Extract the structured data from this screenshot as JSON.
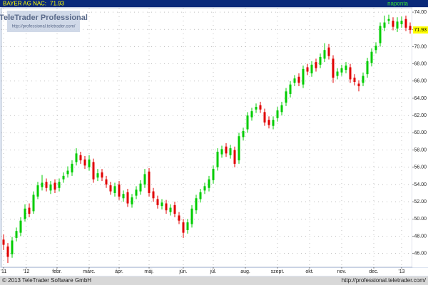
{
  "chart_data": {
    "type": "candlestick",
    "symbol": "BAYER AG  NA",
    "close_label": "C:",
    "period": "naponta",
    "logo": "TeleTrader Professional",
    "logo_url": "http://professional.teletrader.com/",
    "footer_left": "© 2013 TeleTrader Software GmbH",
    "footer_right": "http://professional.teletrader.com/",
    "up_color": "#00cc00",
    "down_color": "#e00000",
    "grid": true,
    "xlim": [
      -0.5,
      95.5
    ],
    "xticks": [
      {
        "value": 0,
        "label": "'11"
      },
      {
        "value": 5.3,
        "label": "'12"
      },
      {
        "value": 12.5,
        "label": "febr."
      },
      {
        "value": 20,
        "label": "márc."
      },
      {
        "value": 27,
        "label": "ápr."
      },
      {
        "value": 34,
        "label": "máj."
      },
      {
        "value": 42,
        "label": "jún."
      },
      {
        "value": 49,
        "label": "júl."
      },
      {
        "value": 56.5,
        "label": "aug."
      },
      {
        "value": 64,
        "label": "szept."
      },
      {
        "value": 71.5,
        "label": "okt."
      },
      {
        "value": 79,
        "label": "nov."
      },
      {
        "value": 86.5,
        "label": "dec."
      },
      {
        "value": 93,
        "label": "'13"
      }
    ],
    "ylim": [
      44.4,
      74.5
    ],
    "yticks": [
      {
        "value": 46,
        "label": "46.00"
      },
      {
        "value": 48,
        "label": "48.00"
      },
      {
        "value": 50,
        "label": "50.00"
      },
      {
        "value": 52,
        "label": "52.00"
      },
      {
        "value": 54,
        "label": "54.00"
      },
      {
        "value": 56,
        "label": "56.00"
      },
      {
        "value": 58,
        "label": "58.00"
      },
      {
        "value": 60,
        "label": "60.00"
      },
      {
        "value": 62,
        "label": "62.00"
      },
      {
        "value": 64,
        "label": "64.00"
      },
      {
        "value": 66,
        "label": "66.00"
      },
      {
        "value": 68,
        "label": "68.00"
      },
      {
        "value": 70,
        "label": "70.00"
      },
      {
        "value": 72,
        "label": "72.00"
      },
      {
        "value": 74,
        "label": "74.00"
      }
    ],
    "open": [
      47.6,
      46.8,
      45.9,
      47.8,
      48.4,
      50.0,
      51.3,
      50.9,
      52.6,
      53.7,
      54.3,
      53.3,
      54.2,
      53.6,
      54.6,
      55.2,
      55.4,
      56.6,
      57.4,
      56.9,
      56.0,
      56.6,
      54.8,
      55.4,
      54.6,
      53.9,
      53.0,
      54.0,
      52.4,
      53.1,
      51.7,
      52.7,
      53.2,
      54.0,
      55.5,
      53.2,
      52.3,
      51.5,
      51.8,
      50.8,
      51.6,
      50.4,
      49.6,
      48.7,
      49.4,
      51.0,
      52.3,
      53.3,
      53.6,
      54.5,
      56.0,
      57.5,
      58.4,
      57.4,
      58.0,
      56.8,
      59.5,
      60.4,
      61.8,
      62.7,
      63.2,
      62.4,
      61.5,
      60.8,
      61.7,
      62.4,
      63.5,
      64.5,
      65.8,
      66.5,
      65.6,
      67.6,
      66.9,
      68.2,
      67.9,
      68.6,
      69.9,
      68.6,
      66.6,
      67.0,
      67.3,
      67.6,
      66.4,
      65.7,
      65.8,
      66.8,
      68.1,
      69.6,
      70.4,
      72.2,
      73.0,
      73.0,
      72.1,
      72.6,
      73.2,
      72.4
    ],
    "high": [
      48.2,
      47.2,
      47.9,
      49.0,
      50.2,
      51.7,
      51.8,
      53.2,
      54.3,
      55.1,
      54.7,
      54.4,
      54.6,
      54.7,
      55.4,
      56.1,
      56.8,
      58.2,
      57.8,
      57.3,
      57.4,
      57.0,
      55.8,
      55.8,
      55.0,
      54.3,
      54.2,
      54.4,
      53.3,
      53.5,
      52.9,
      53.8,
      54.5,
      55.8,
      55.9,
      53.6,
      52.7,
      52.3,
      52.2,
      51.7,
      52.0,
      50.8,
      50.0,
      50.0,
      51.6,
      52.8,
      53.5,
      54.2,
      55.0,
      56.2,
      58.2,
      58.5,
      58.8,
      58.6,
      58.4,
      60.0,
      60.6,
      62.4,
      62.9,
      63.4,
      63.6,
      62.8,
      61.9,
      61.9,
      63.0,
      63.6,
      65.2,
      66.0,
      66.7,
      66.9,
      67.8,
      68.0,
      68.3,
      68.6,
      69.2,
      70.4,
      70.3,
      69.0,
      67.5,
      67.9,
      68.2,
      68.0,
      66.8,
      66.1,
      67.0,
      68.7,
      69.8,
      70.5,
      72.8,
      73.6,
      73.7,
      73.4,
      73.4,
      73.5,
      73.6,
      72.8
    ],
    "low": [
      46.4,
      44.9,
      45.5,
      47.4,
      48.0,
      49.7,
      50.2,
      50.6,
      52.3,
      53.3,
      53.2,
      52.9,
      53.0,
      53.2,
      54.2,
      54.8,
      55.0,
      56.2,
      56.4,
      55.8,
      55.6,
      54.2,
      54.4,
      54.4,
      53.6,
      52.8,
      52.6,
      52.2,
      52.0,
      51.4,
      51.3,
      52.3,
      52.8,
      53.6,
      52.6,
      52.0,
      51.2,
      51.1,
      50.6,
      50.4,
      50.2,
      49.4,
      47.8,
      48.3,
      49.0,
      50.6,
      51.9,
      52.9,
      53.2,
      54.1,
      55.6,
      57.1,
      57.2,
      57.0,
      56.0,
      56.4,
      59.1,
      60.0,
      61.4,
      62.3,
      62.3,
      60.8,
      60.5,
      60.4,
      61.3,
      62.0,
      63.1,
      64.1,
      65.4,
      65.4,
      65.2,
      66.7,
      66.5,
      67.1,
      67.5,
      68.2,
      68.5,
      65.8,
      66.2,
      66.6,
      66.9,
      65.8,
      65.5,
      64.8,
      65.4,
      66.4,
      67.7,
      69.2,
      70.0,
      71.8,
      72.6,
      71.9,
      71.7,
      72.2,
      71.8,
      71.5
    ],
    "close": [
      47.0,
      45.6,
      47.5,
      48.6,
      49.8,
      51.2,
      50.6,
      52.8,
      53.9,
      54.2,
      53.6,
      54.0,
      53.4,
      54.3,
      55.0,
      55.6,
      56.4,
      57.6,
      56.8,
      56.2,
      56.9,
      54.6,
      55.3,
      54.8,
      54.0,
      53.2,
      53.8,
      52.6,
      52.9,
      51.8,
      52.5,
      53.4,
      54.1,
      55.2,
      53.0,
      52.4,
      51.6,
      51.9,
      51.0,
      51.3,
      50.6,
      49.8,
      48.4,
      49.6,
      51.2,
      52.4,
      53.1,
      53.8,
      54.6,
      55.8,
      57.8,
      58.1,
      57.6,
      58.2,
      56.4,
      59.6,
      60.2,
      62.0,
      62.5,
      63.0,
      62.7,
      61.2,
      60.9,
      61.5,
      62.6,
      63.2,
      64.8,
      65.6,
      66.3,
      65.8,
      67.4,
      67.1,
      67.9,
      67.5,
      68.8,
      69.6,
      68.9,
      66.4,
      67.1,
      67.5,
      67.8,
      66.2,
      65.9,
      65.4,
      66.6,
      68.3,
      69.4,
      70.1,
      72.4,
      72.8,
      73.2,
      72.3,
      72.9,
      73.0,
      72.2,
      71.93
    ]
  }
}
